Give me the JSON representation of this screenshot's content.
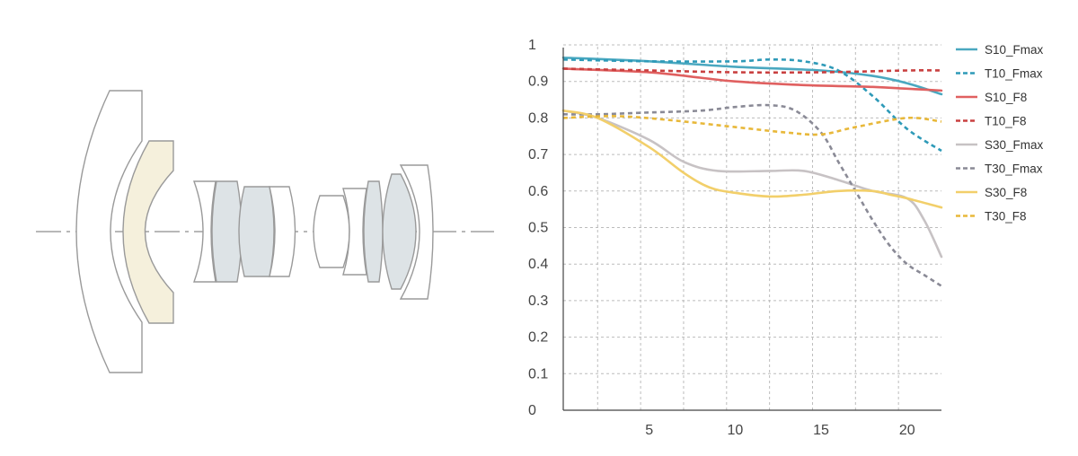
{
  "chart_data": {
    "type": "line",
    "xlim": [
      0,
      22
    ],
    "ylim": [
      0,
      1
    ],
    "x_ticks": [
      5,
      10,
      15,
      20
    ],
    "y_ticks": [
      0,
      0.1,
      0.2,
      0.3,
      0.4,
      0.5,
      0.6,
      0.7,
      0.8,
      0.9,
      1
    ],
    "y_tick_labels": [
      "0",
      "0.1",
      "0.2",
      "0.3",
      "0.4",
      "0.5",
      "0.6",
      "0.7",
      "0.8",
      "0.9",
      "1"
    ],
    "grid": true,
    "legend_position": "right",
    "series": [
      {
        "name": "S10_Fmax",
        "color": "#4aa8c0",
        "dash": "solid",
        "x": [
          0,
          5,
          10,
          15,
          18,
          20,
          22
        ],
        "y": [
          0.965,
          0.955,
          0.94,
          0.93,
          0.915,
          0.895,
          0.865
        ]
      },
      {
        "name": "T10_Fmax",
        "color": "#2e9ab8",
        "dash": "dashed",
        "x": [
          0,
          5,
          10,
          12,
          14,
          16,
          18,
          20,
          22
        ],
        "y": [
          0.96,
          0.955,
          0.955,
          0.96,
          0.955,
          0.93,
          0.86,
          0.77,
          0.71
        ]
      },
      {
        "name": "S10_F8",
        "color": "#e06060",
        "dash": "solid",
        "x": [
          0,
          5,
          8,
          10,
          14,
          18,
          20,
          22
        ],
        "y": [
          0.935,
          0.925,
          0.91,
          0.9,
          0.89,
          0.885,
          0.88,
          0.875
        ]
      },
      {
        "name": "T10_F8",
        "color": "#c94040",
        "dash": "dashed",
        "x": [
          0,
          5,
          10,
          15,
          20,
          22
        ],
        "y": [
          0.935,
          0.93,
          0.925,
          0.925,
          0.93,
          0.93
        ]
      },
      {
        "name": "S30_Fmax",
        "color": "#c7c2c4",
        "dash": "solid",
        "x": [
          0,
          2,
          5,
          7,
          9,
          12,
          14,
          16,
          18,
          20,
          21,
          22
        ],
        "y": [
          0.82,
          0.8,
          0.74,
          0.68,
          0.655,
          0.655,
          0.655,
          0.63,
          0.6,
          0.58,
          0.52,
          0.42
        ]
      },
      {
        "name": "T30_Fmax",
        "color": "#8a8a96",
        "dash": "dashed",
        "x": [
          0,
          2,
          5,
          8,
          10,
          12,
          13.5,
          15,
          16,
          17,
          18,
          19,
          20,
          21,
          22
        ],
        "y": [
          0.81,
          0.81,
          0.815,
          0.82,
          0.83,
          0.835,
          0.82,
          0.76,
          0.68,
          0.6,
          0.52,
          0.45,
          0.4,
          0.37,
          0.34
        ]
      },
      {
        "name": "S30_F8",
        "color": "#f2cf6a",
        "dash": "solid",
        "x": [
          0,
          2,
          5,
          7,
          8.5,
          10,
          12,
          14,
          16,
          18,
          19,
          20,
          22
        ],
        "y": [
          0.82,
          0.8,
          0.72,
          0.65,
          0.61,
          0.595,
          0.585,
          0.59,
          0.6,
          0.6,
          0.59,
          0.58,
          0.555
        ]
      },
      {
        "name": "T30_F8",
        "color": "#e8b83a",
        "dash": "dashed",
        "x": [
          0,
          3,
          6,
          10,
          13,
          15,
          17,
          20,
          22
        ],
        "y": [
          0.8,
          0.805,
          0.795,
          0.775,
          0.76,
          0.755,
          0.775,
          0.8,
          0.79
        ]
      }
    ]
  },
  "diagram": {
    "colors": {
      "stroke": "#9a9a9a",
      "glass_tinted": "#f5f0dc",
      "glass_grey": "#dde3e6",
      "axis_line": "#a0a0a0"
    }
  },
  "chart_style": {
    "axis_color": "#444444",
    "grid_color": "#bcbcbc"
  }
}
